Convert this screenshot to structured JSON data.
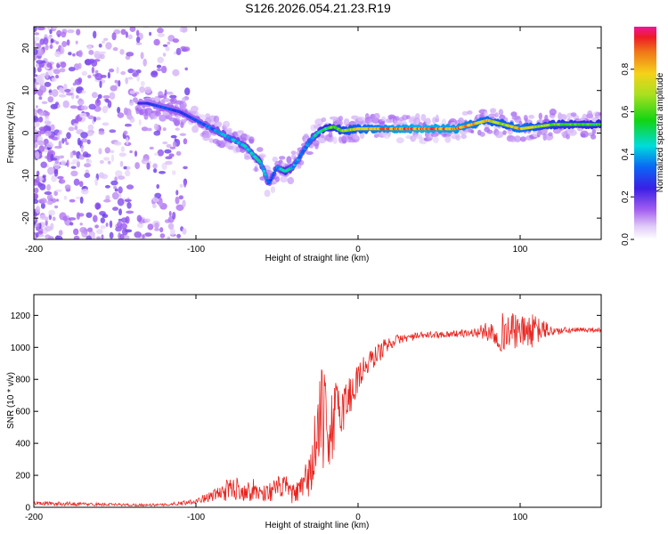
{
  "figure": {
    "title": "S126.2026.054.21.23.R19"
  },
  "chart_data": [
    {
      "type": "heatmap",
      "title": "S126.2026.054.21.23.R19",
      "xlabel": "Height of straight line (km)",
      "ylabel": "Frequency (Hz)",
      "xlim": [
        -200,
        150
      ],
      "ylim": [
        -25,
        25
      ],
      "xticks": [
        "-200",
        "-100",
        "0",
        "100"
      ],
      "yticks": [
        "20",
        "10",
        "0",
        "-10",
        "-20"
      ],
      "colorbar": {
        "label": "Normalized spectral amplitude",
        "range": [
          0,
          1
        ],
        "ticks": [
          "0.0",
          "0.2",
          "0.4",
          "0.6",
          "0.8"
        ]
      },
      "ridge": {
        "description": "frequency of peak amplitude vs height",
        "x": [
          -130,
          -120,
          -110,
          -100,
          -90,
          -80,
          -70,
          -60,
          -55,
          -50,
          -45,
          -40,
          -35,
          -30,
          -25,
          -20,
          -15,
          -10,
          0,
          20,
          40,
          60,
          80,
          90,
          100,
          120,
          150
        ],
        "freq": [
          7,
          6,
          5,
          3,
          1,
          -1,
          -3,
          -7,
          -12,
          -8,
          -9,
          -8,
          -5,
          -2,
          0,
          1,
          1.5,
          0.5,
          1,
          1,
          1,
          1,
          3,
          2,
          1,
          2,
          2
        ],
        "amplitude": [
          0.25,
          0.3,
          0.3,
          0.3,
          0.35,
          0.4,
          0.4,
          0.45,
          0.3,
          0.35,
          0.5,
          0.4,
          0.35,
          0.4,
          0.45,
          0.55,
          0.6,
          0.65,
          0.75,
          0.85,
          0.9,
          0.85,
          0.75,
          0.7,
          0.8,
          0.6,
          0.55
        ]
      }
    },
    {
      "type": "line",
      "xlabel": "Height of straight line (km)",
      "ylabel": "SNR (10 * v/v)",
      "xlim": [
        -200,
        150
      ],
      "ylim": [
        0,
        1330
      ],
      "xticks": [
        "-200",
        "-100",
        "0",
        "100"
      ],
      "yticks": [
        "0",
        "200",
        "400",
        "600",
        "800",
        "1000",
        "1200"
      ],
      "series": [
        {
          "name": "SNR",
          "color": "#e8241f",
          "x": [
            -200,
            -180,
            -160,
            -140,
            -120,
            -110,
            -100,
            -95,
            -90,
            -85,
            -80,
            -75,
            -70,
            -65,
            -60,
            -55,
            -50,
            -45,
            -40,
            -35,
            -30,
            -28,
            -26,
            -24,
            -22,
            -20,
            -18,
            -16,
            -14,
            -12,
            -10,
            -8,
            -6,
            -4,
            -2,
            0,
            5,
            10,
            15,
            20,
            25,
            30,
            40,
            50,
            60,
            70,
            80,
            85,
            90,
            95,
            100,
            105,
            110,
            115,
            120,
            130,
            140,
            150
          ],
          "mean": [
            25,
            22,
            18,
            15,
            15,
            25,
            40,
            55,
            70,
            90,
            110,
            120,
            100,
            110,
            90,
            95,
            120,
            130,
            80,
            110,
            200,
            300,
            380,
            480,
            560,
            520,
            470,
            520,
            560,
            600,
            620,
            650,
            680,
            720,
            760,
            820,
            880,
            940,
            990,
            1030,
            1050,
            1060,
            1075,
            1080,
            1085,
            1090,
            1100,
            1090,
            1095,
            1100,
            1095,
            1100,
            1105,
            1110,
            1100,
            1105,
            1110,
            1110
          ],
          "noise": [
            12,
            12,
            10,
            8,
            8,
            12,
            18,
            25,
            35,
            55,
            70,
            75,
            60,
            70,
            60,
            60,
            70,
            75,
            60,
            80,
            150,
            250,
            300,
            350,
            320,
            280,
            250,
            250,
            240,
            200,
            180,
            160,
            150,
            140,
            130,
            110,
            80,
            70,
            60,
            40,
            30,
            25,
            22,
            20,
            22,
            25,
            60,
            100,
            130,
            120,
            90,
            120,
            90,
            60,
            30,
            20,
            15,
            15
          ]
        }
      ]
    }
  ]
}
